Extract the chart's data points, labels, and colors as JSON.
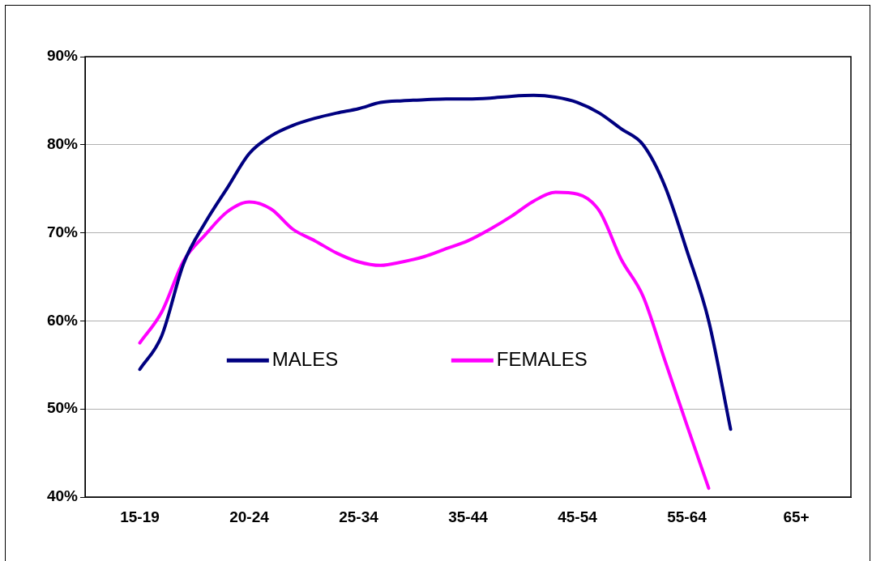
{
  "chart_data": {
    "type": "line",
    "categories": [
      null,
      null,
      "15-19",
      null,
      null,
      null,
      null,
      "20-24",
      null,
      null,
      null,
      null,
      "25-34",
      null,
      null,
      null,
      null,
      "35-44",
      null,
      null,
      null,
      null,
      "45-54",
      null,
      null,
      null,
      null,
      "55-64",
      null,
      null,
      null,
      null,
      "65+",
      null,
      null
    ],
    "series": [
      {
        "name": "MALES",
        "color": "#000080",
        "values": [
          null,
          null,
          54.5,
          58.3,
          66.5,
          71.2,
          75.1,
          79,
          81,
          82.2,
          83,
          83.6,
          84.1,
          84.8,
          85,
          85.1,
          85.2,
          85.2,
          85.3,
          85.5,
          85.6,
          85.4,
          84.8,
          83.6,
          81.8,
          80,
          75.3,
          68,
          60,
          47.7,
          null,
          null,
          null,
          null,
          null
        ]
      },
      {
        "name": "FEMALES",
        "color": "#ff00ff",
        "values": [
          null,
          null,
          57.5,
          61,
          66.8,
          69.8,
          72.4,
          73.5,
          72.7,
          70.4,
          69.1,
          67.7,
          66.7,
          66.3,
          66.7,
          67.3,
          68.2,
          69.1,
          70.4,
          71.9,
          73.6,
          74.6,
          74.4,
          72.5,
          67,
          62.8,
          55.5,
          48.2,
          41,
          null,
          null,
          null,
          null,
          null,
          null
        ]
      }
    ],
    "ylim": [
      40,
      90
    ],
    "yticks": [
      {
        "value": 40,
        "label": "40%"
      },
      {
        "value": 50,
        "label": "50%"
      },
      {
        "value": 60,
        "label": "60%"
      },
      {
        "value": 70,
        "label": "70%"
      },
      {
        "value": 80,
        "label": "80%"
      },
      {
        "value": 90,
        "label": "90%"
      }
    ],
    "grid": "y",
    "legend": "center",
    "marker": "none",
    "line_style": "solid"
  }
}
